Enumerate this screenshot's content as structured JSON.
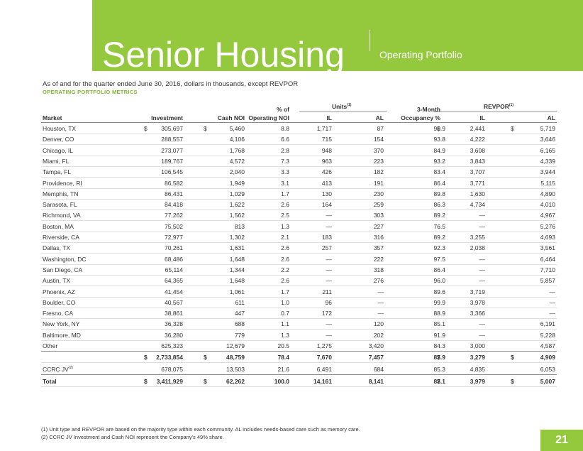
{
  "header": {
    "title": "Senior Housing",
    "section": "Operating Portfolio"
  },
  "subtitle": "As of and for the quarter ended June 30, 2016, dollars in thousands, except REVPOR",
  "heading": "OPERATING PORTFOLIO METRICS",
  "table": {
    "columns": {
      "market": "Market",
      "investment": "Investment",
      "cash_noi": "Cash NOI",
      "pct_top": "% of",
      "pct_bottom": "Operating NOI",
      "units": "Units",
      "units_note": "(1)",
      "units_il": "IL",
      "units_al": "AL",
      "occ_top": "3-Month",
      "occ_bottom": "Occupancy %",
      "revpor": "REVPOR",
      "revpor_note": "(1)",
      "revpor_il": "IL",
      "revpor_al": "AL"
    },
    "currency": "$",
    "rows": [
      {
        "market": "Houston, TX",
        "values": [
          "305,697",
          "5,460",
          "8.8",
          "1,717",
          "87",
          "90.9",
          "2,441",
          "5,719"
        ],
        "currency": "$"
      },
      {
        "market": "Denver, CO",
        "values": [
          "288,557",
          "4,106",
          "6.6",
          "715",
          "154",
          "93.8",
          "4,222",
          "3,646"
        ]
      },
      {
        "market": "Chicago, IL",
        "values": [
          "273,077",
          "1,768",
          "2.8",
          "948",
          "370",
          "84.9",
          "3,608",
          "6,165"
        ]
      },
      {
        "market": "Miami, FL",
        "values": [
          "189,767",
          "4,572",
          "7.3",
          "963",
          "223",
          "93.2",
          "3,843",
          "4,339"
        ]
      },
      {
        "market": "Tampa, FL",
        "values": [
          "106,545",
          "2,040",
          "3.3",
          "426",
          "182",
          "83.4",
          "3,707",
          "3,944"
        ]
      },
      {
        "market": "Providence, RI",
        "values": [
          "86,582",
          "1,949",
          "3.1",
          "413",
          "191",
          "86.4",
          "3,771",
          "5,115"
        ]
      },
      {
        "market": "Memphis, TN",
        "values": [
          "86,431",
          "1,029",
          "1.7",
          "130",
          "230",
          "89.8",
          "1,630",
          "4,890"
        ]
      },
      {
        "market": "Sarasota, FL",
        "values": [
          "84,418",
          "1,622",
          "2.6",
          "164",
          "259",
          "86.3",
          "4,734",
          "4,010"
        ]
      },
      {
        "market": "Richmond, VA",
        "values": [
          "77,262",
          "1,562",
          "2.5",
          "—",
          "303",
          "89.2",
          "—",
          "4,967"
        ]
      },
      {
        "market": "Boston, MA",
        "values": [
          "75,502",
          "813",
          "1.3",
          "—",
          "227",
          "76.5",
          "—",
          "5,276"
        ]
      },
      {
        "market": "Riverside, CA",
        "values": [
          "72,977",
          "1,302",
          "2.1",
          "183",
          "316",
          "89.2",
          "3,255",
          "4,693"
        ]
      },
      {
        "market": "Dallas, TX",
        "values": [
          "70,261",
          "1,631",
          "2.6",
          "257",
          "357",
          "92.3",
          "2,038",
          "3,561"
        ]
      },
      {
        "market": "Washington, DC",
        "values": [
          "68,486",
          "1,648",
          "2.6",
          "—",
          "222",
          "97.5",
          "—",
          "6,464"
        ]
      },
      {
        "market": "San Diego, CA",
        "values": [
          "65,114",
          "1,344",
          "2.2",
          "—",
          "318",
          "86.4",
          "—",
          "7,710"
        ]
      },
      {
        "market": "Austin, TX",
        "values": [
          "64,365",
          "1,648",
          "2.6",
          "—",
          "276",
          "96.0",
          "—",
          "5,857"
        ]
      },
      {
        "market": "Phoenix, AZ",
        "values": [
          "41,454",
          "1,061",
          "1.7",
          "211",
          "—",
          "89.6",
          "3,719",
          "—"
        ]
      },
      {
        "market": "Boulder, CO",
        "values": [
          "40,567",
          "611",
          "1.0",
          "96",
          "—",
          "99.9",
          "3,978",
          "—"
        ]
      },
      {
        "market": "Fresno, CA",
        "values": [
          "38,861",
          "447",
          "0.7",
          "172",
          "—",
          "88.9",
          "3,366",
          "—"
        ]
      },
      {
        "market": "New York, NY",
        "values": [
          "36,328",
          "688",
          "1.1",
          "—",
          "120",
          "85.1",
          "—",
          "6,191"
        ]
      },
      {
        "market": "Baltimore, MD",
        "values": [
          "36,280",
          "779",
          "1.3",
          "—",
          "202",
          "91.9",
          "—",
          "5,228"
        ]
      },
      {
        "market": "Other",
        "values": [
          "625,323",
          "12,679",
          "20.5",
          "1,275",
          "3,420",
          "84.3",
          "3,000",
          "4,587"
        ]
      }
    ],
    "subtotal": {
      "values": [
        "2,733,854",
        "48,759",
        "78.4",
        "7,670",
        "7,457",
        "87.9",
        "3,279",
        "4,909"
      ],
      "currency": "$"
    },
    "ccrc": {
      "market": "CCRC JV",
      "note": "(2)",
      "values": [
        "678,075",
        "13,503",
        "21.6",
        "6,491",
        "684",
        "85.3",
        "4,835",
        "6,053"
      ]
    },
    "total": {
      "market": "Total",
      "values": [
        "3,411,929",
        "62,262",
        "100.0",
        "14,161",
        "8,141",
        "87.1",
        "3,979",
        "5,007"
      ],
      "currency": "$"
    }
  },
  "footnotes": [
    "(1)  Unit type and REVPOR are based on the majority type within each community. AL includes needs-based care such as memory care.",
    "(2)  CCRC JV Investment and Cash NOI represent the Company's 49% share."
  ],
  "page_number": "21"
}
